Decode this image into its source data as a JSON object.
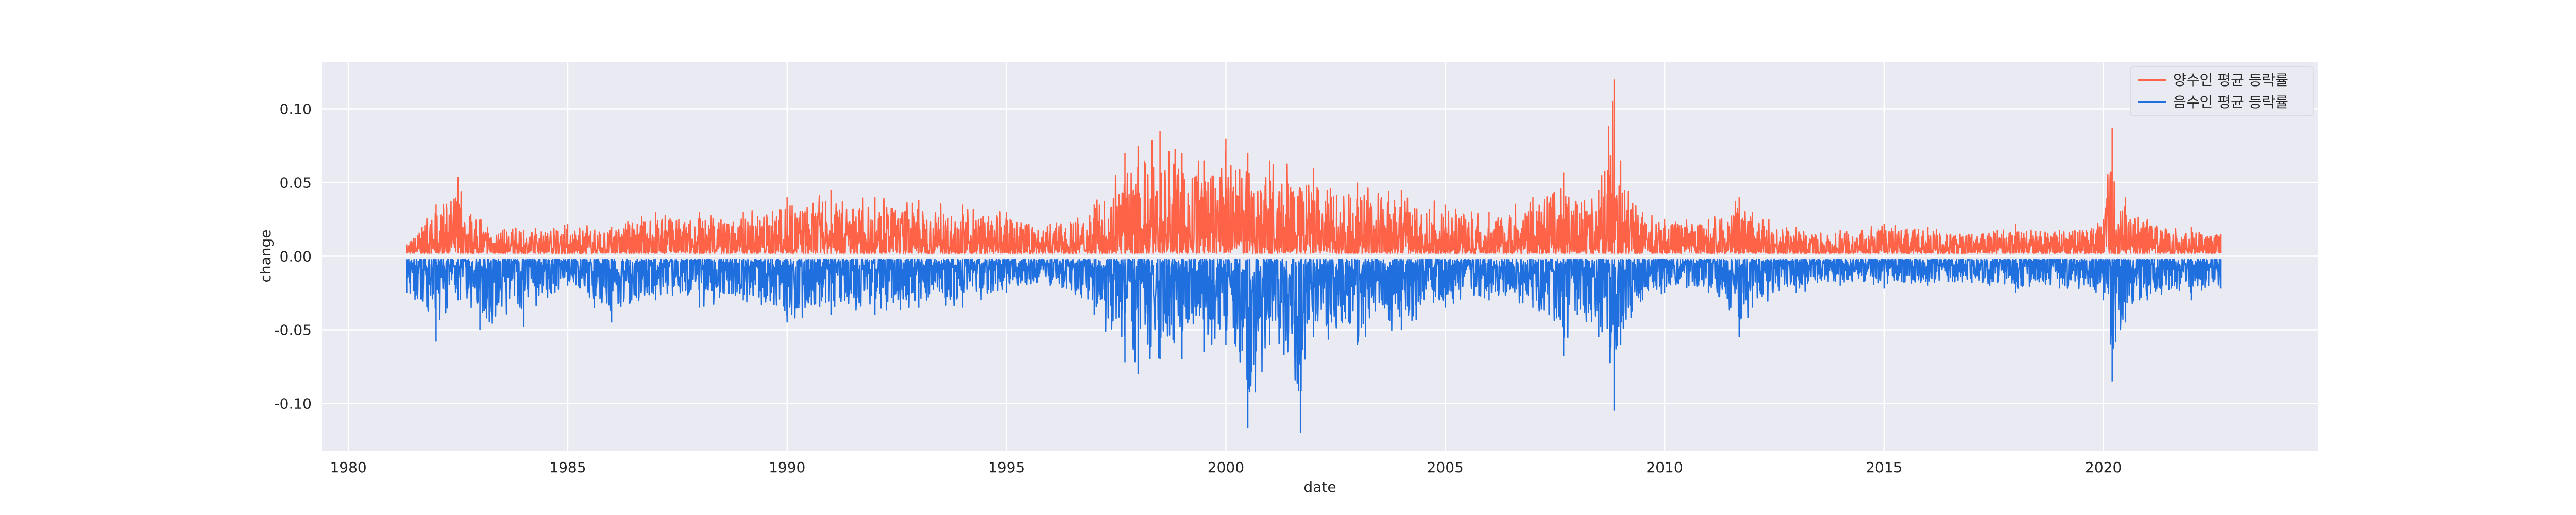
{
  "chart_data": {
    "type": "line",
    "xlabel": "date",
    "ylabel": "change",
    "x_ticks": [
      "1980",
      "1985",
      "1990",
      "1995",
      "2000",
      "2005",
      "2010",
      "2015",
      "2020"
    ],
    "y_ticks": [
      "-0.10",
      "-0.05",
      "0.00",
      "0.05",
      "0.10"
    ],
    "xlim": [
      1979.4,
      2024.9
    ],
    "ylim": [
      -0.132,
      0.132
    ],
    "grid": true,
    "legend_position": "top-right",
    "series": [
      {
        "name": "양수인 평균 등락률",
        "color": "#ff6347",
        "x": [
          1981.33,
          1982,
          1982.5,
          1983,
          1984,
          1985,
          1986,
          1987,
          1988,
          1989,
          1990,
          1991,
          1992,
          1993,
          1994,
          1995,
          1996,
          1997,
          1997.7,
          1998,
          1998.5,
          1999,
          1999.5,
          2000,
          2000.5,
          2001,
          2002,
          2003,
          2004,
          2005,
          2006,
          2007,
          2007.7,
          2008,
          2008.5,
          2008.85,
          2009,
          2009.5,
          2010,
          2011,
          2011.7,
          2012,
          2013,
          2014,
          2015,
          2016,
          2017,
          2018,
          2019,
          2020,
          2020.2,
          2020.5,
          2021,
          2022,
          2022.67
        ],
        "values": [
          0.008,
          0.035,
          0.054,
          0.025,
          0.018,
          0.022,
          0.02,
          0.03,
          0.03,
          0.03,
          0.04,
          0.045,
          0.04,
          0.038,
          0.035,
          0.03,
          0.022,
          0.035,
          0.07,
          0.075,
          0.085,
          0.07,
          0.065,
          0.08,
          0.07,
          0.065,
          0.06,
          0.05,
          0.045,
          0.035,
          0.03,
          0.04,
          0.057,
          0.035,
          0.045,
          0.12,
          0.065,
          0.03,
          0.025,
          0.025,
          0.04,
          0.03,
          0.02,
          0.018,
          0.022,
          0.02,
          0.015,
          0.022,
          0.018,
          0.025,
          0.087,
          0.04,
          0.025,
          0.02,
          0.015
        ]
      },
      {
        "name": "음수인 평균 등락률",
        "color": "#1f6fdf",
        "x": [
          1981.33,
          1982,
          1982.5,
          1983,
          1984,
          1985,
          1986,
          1987,
          1988,
          1989,
          1990,
          1991,
          1992,
          1993,
          1994,
          1995,
          1996,
          1997,
          1997.7,
          1998,
          1998.5,
          1999,
          1999.5,
          2000,
          2000.5,
          2001,
          2001.7,
          2002,
          2003,
          2004,
          2005,
          2006,
          2007,
          2007.7,
          2008,
          2008.5,
          2008.85,
          2009,
          2009.5,
          2010,
          2011,
          2011.7,
          2012,
          2013,
          2014,
          2015,
          2016,
          2017,
          2018,
          2019,
          2020,
          2020.2,
          2020.5,
          2021,
          2022,
          2022.67
        ],
        "values": [
          -0.025,
          -0.058,
          -0.03,
          -0.05,
          -0.048,
          -0.02,
          -0.045,
          -0.03,
          -0.035,
          -0.03,
          -0.045,
          -0.04,
          -0.04,
          -0.035,
          -0.035,
          -0.025,
          -0.02,
          -0.04,
          -0.072,
          -0.08,
          -0.07,
          -0.07,
          -0.065,
          -0.06,
          -0.117,
          -0.06,
          -0.12,
          -0.055,
          -0.06,
          -0.05,
          -0.035,
          -0.03,
          -0.035,
          -0.068,
          -0.04,
          -0.055,
          -0.105,
          -0.06,
          -0.03,
          -0.025,
          -0.025,
          -0.055,
          -0.035,
          -0.025,
          -0.02,
          -0.022,
          -0.02,
          -0.018,
          -0.025,
          -0.022,
          -0.03,
          -0.085,
          -0.045,
          -0.03,
          -0.03,
          -0.022
        ]
      }
    ]
  }
}
